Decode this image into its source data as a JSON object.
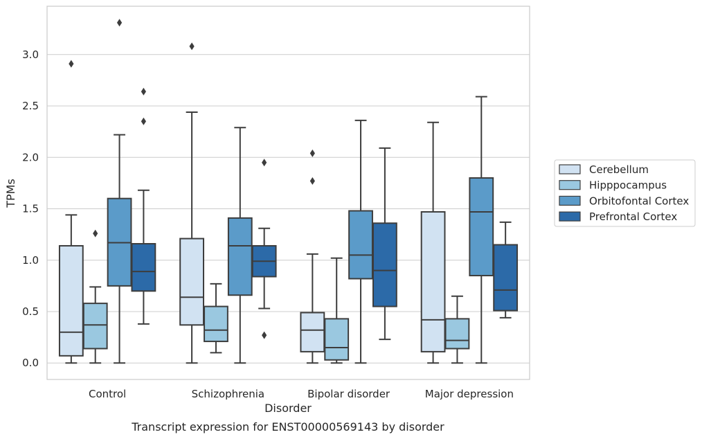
{
  "chart_data": {
    "type": "box",
    "caption": "Transcript expression for ENST00000569143 by disorder",
    "xlabel": "Disorder",
    "ylabel": "TPMs",
    "ylim": [
      -0.16,
      3.47
    ],
    "yticks": [
      "0.0",
      "0.5",
      "1.0",
      "1.5",
      "2.0",
      "2.5",
      "3.0"
    ],
    "grid": "horizontal",
    "legend_position": "right",
    "categories": [
      "Control",
      "Schizophrenia",
      "Bipolar disorder",
      "Major depression"
    ],
    "series": [
      {
        "name": "Cerebellum",
        "color": "#d1e2f2",
        "boxes": [
          {
            "whislo": 0.0,
            "q1": 0.07,
            "med": 0.3,
            "q3": 1.14,
            "whishi": 1.44,
            "fliers": [
              2.91
            ]
          },
          {
            "whislo": 0.0,
            "q1": 0.37,
            "med": 0.64,
            "q3": 1.21,
            "whishi": 2.44,
            "fliers": [
              3.08
            ]
          },
          {
            "whislo": 0.0,
            "q1": 0.11,
            "med": 0.32,
            "q3": 0.49,
            "whishi": 1.06,
            "fliers": [
              1.77,
              2.04
            ]
          },
          {
            "whislo": 0.0,
            "q1": 0.11,
            "med": 0.42,
            "q3": 1.47,
            "whishi": 2.34,
            "fliers": []
          }
        ]
      },
      {
        "name": "Hipppocampus",
        "color": "#9ac8e0",
        "boxes": [
          {
            "whislo": 0.0,
            "q1": 0.14,
            "med": 0.37,
            "q3": 0.58,
            "whishi": 0.74,
            "fliers": [
              1.26
            ]
          },
          {
            "whislo": 0.1,
            "q1": 0.21,
            "med": 0.32,
            "q3": 0.55,
            "whishi": 0.77,
            "fliers": []
          },
          {
            "whislo": 0.0,
            "q1": 0.03,
            "med": 0.15,
            "q3": 0.43,
            "whishi": 1.02,
            "fliers": []
          },
          {
            "whislo": 0.0,
            "q1": 0.14,
            "med": 0.22,
            "q3": 0.43,
            "whishi": 0.65,
            "fliers": []
          }
        ]
      },
      {
        "name": "Orbitofontal Cortex",
        "color": "#5b9bc9",
        "boxes": [
          {
            "whislo": 0.0,
            "q1": 0.75,
            "med": 1.17,
            "q3": 1.6,
            "whishi": 2.22,
            "fliers": [
              3.31
            ]
          },
          {
            "whislo": 0.0,
            "q1": 0.66,
            "med": 1.14,
            "q3": 1.41,
            "whishi": 2.29,
            "fliers": []
          },
          {
            "whislo": 0.0,
            "q1": 0.82,
            "med": 1.05,
            "q3": 1.48,
            "whishi": 2.36,
            "fliers": []
          },
          {
            "whislo": 0.0,
            "q1": 0.85,
            "med": 1.47,
            "q3": 1.8,
            "whishi": 2.59,
            "fliers": []
          }
        ]
      },
      {
        "name": "Prefrontal Cortex",
        "color": "#2c6aa8",
        "boxes": [
          {
            "whislo": 0.38,
            "q1": 0.7,
            "med": 0.89,
            "q3": 1.16,
            "whishi": 1.68,
            "fliers": [
              2.35,
              2.64
            ]
          },
          {
            "whislo": 0.53,
            "q1": 0.84,
            "med": 0.99,
            "q3": 1.14,
            "whishi": 1.31,
            "fliers": [
              0.27,
              1.95
            ]
          },
          {
            "whislo": 0.23,
            "q1": 0.55,
            "med": 0.9,
            "q3": 1.36,
            "whishi": 2.09,
            "fliers": []
          },
          {
            "whislo": 0.44,
            "q1": 0.51,
            "med": 0.71,
            "q3": 1.15,
            "whishi": 1.37,
            "fliers": []
          }
        ]
      }
    ]
  }
}
